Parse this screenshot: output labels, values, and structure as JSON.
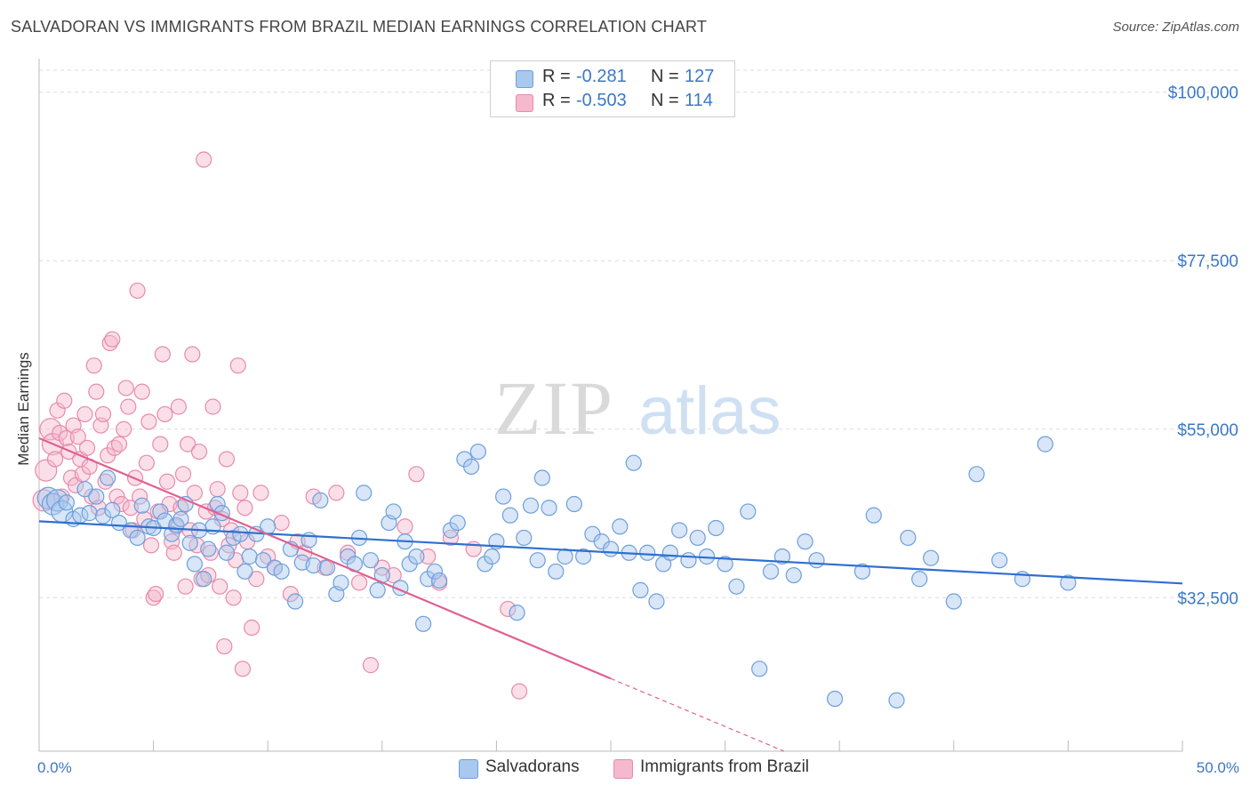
{
  "title": "SALVADORAN VS IMMIGRANTS FROM BRAZIL MEDIAN EARNINGS CORRELATION CHART",
  "source": "Source: ZipAtlas.com",
  "watermark": {
    "zip": "ZIP",
    "atlas": "atlas"
  },
  "legend": {
    "rows": [
      {
        "r_label": "R =",
        "r_value": "-0.281",
        "n_label": "N =",
        "n_value": "127",
        "color": "#a9c8ee"
      },
      {
        "r_label": "R =",
        "r_value": "-0.503",
        "n_label": "N =",
        "n_value": "114",
        "color": "#f5b8cc"
      }
    ]
  },
  "bottom_legend": {
    "salvadorans": "Salvadorans",
    "brazil": "Immigrants from Brazil"
  },
  "colors": {
    "blue_fill": "#a9c8ee",
    "blue_stroke": "#6c9fdc",
    "blue_line": "#2f6fd0",
    "pink_fill": "#f5b8cc",
    "pink_stroke": "#e98aab",
    "pink_line": "#e0608f",
    "tick_text": "#3b78c7",
    "grid": "#dcdcdc"
  },
  "chart_data": {
    "type": "scatter",
    "title": "SALVADORAN VS IMMIGRANTS FROM BRAZIL MEDIAN EARNINGS CORRELATION CHART",
    "xlabel": "",
    "ylabel": "Median Earnings",
    "xlim": [
      0,
      50
    ],
    "ylim": [
      12000,
      104000
    ],
    "x_tick_labels": [
      {
        "value": 0,
        "label": "0.0%"
      },
      {
        "value": 50,
        "label": "50.0%"
      }
    ],
    "y_ticks": [
      {
        "value": 32500,
        "label": "$32,500"
      },
      {
        "value": 55000,
        "label": "$55,000"
      },
      {
        "value": 77500,
        "label": "$77,500"
      },
      {
        "value": 100000,
        "label": "$100,000"
      }
    ],
    "grid": true,
    "legend_position": "top-center",
    "series": [
      {
        "name": "Salvadorans",
        "r": -0.281,
        "n": 127,
        "trend": {
          "x": [
            0,
            50
          ],
          "y": [
            42700,
            34400
          ]
        },
        "points": [
          [
            0.4,
            45800
          ],
          [
            0.6,
            45000
          ],
          [
            0.8,
            45500
          ],
          [
            1.0,
            44000
          ],
          [
            1.2,
            45200
          ],
          [
            1.5,
            43000
          ],
          [
            1.8,
            43500
          ],
          [
            2.0,
            47000
          ],
          [
            2.2,
            43800
          ],
          [
            2.5,
            46000
          ],
          [
            2.8,
            43400
          ],
          [
            3.0,
            48500
          ],
          [
            3.2,
            44200
          ],
          [
            3.5,
            42500
          ],
          [
            4.0,
            41500
          ],
          [
            4.3,
            40500
          ],
          [
            4.5,
            44800
          ],
          [
            4.8,
            42000
          ],
          [
            5.0,
            41800
          ],
          [
            5.3,
            44000
          ],
          [
            5.5,
            42800
          ],
          [
            5.8,
            41000
          ],
          [
            6.0,
            42200
          ],
          [
            6.2,
            43000
          ],
          [
            6.4,
            45000
          ],
          [
            6.6,
            39800
          ],
          [
            6.8,
            37000
          ],
          [
            7.0,
            41500
          ],
          [
            7.2,
            35000
          ],
          [
            7.4,
            39000
          ],
          [
            7.6,
            42000
          ],
          [
            7.8,
            45000
          ],
          [
            8.0,
            43800
          ],
          [
            8.2,
            38500
          ],
          [
            8.5,
            40500
          ],
          [
            8.8,
            41000
          ],
          [
            9.0,
            36000
          ],
          [
            9.2,
            38000
          ],
          [
            9.5,
            41000
          ],
          [
            9.8,
            37500
          ],
          [
            10.0,
            42000
          ],
          [
            10.3,
            36500
          ],
          [
            10.6,
            36000
          ],
          [
            11.0,
            39000
          ],
          [
            11.2,
            32000
          ],
          [
            11.5,
            37200
          ],
          [
            11.8,
            40200
          ],
          [
            12.0,
            36800
          ],
          [
            12.3,
            45500
          ],
          [
            12.6,
            36500
          ],
          [
            13.0,
            33000
          ],
          [
            13.2,
            34500
          ],
          [
            13.5,
            38000
          ],
          [
            13.8,
            37000
          ],
          [
            14.0,
            40500
          ],
          [
            14.2,
            46500
          ],
          [
            14.5,
            37500
          ],
          [
            14.8,
            33500
          ],
          [
            15.0,
            35500
          ],
          [
            15.3,
            42500
          ],
          [
            15.5,
            44000
          ],
          [
            15.8,
            33800
          ],
          [
            16.0,
            40000
          ],
          [
            16.2,
            37000
          ],
          [
            16.5,
            38000
          ],
          [
            16.8,
            29000
          ],
          [
            17.0,
            35000
          ],
          [
            17.3,
            36000
          ],
          [
            17.5,
            34800
          ],
          [
            18.0,
            41500
          ],
          [
            18.3,
            42500
          ],
          [
            18.6,
            51000
          ],
          [
            18.9,
            50000
          ],
          [
            19.2,
            52000
          ],
          [
            19.5,
            37000
          ],
          [
            19.8,
            38000
          ],
          [
            20.0,
            40000
          ],
          [
            20.3,
            46000
          ],
          [
            20.6,
            43500
          ],
          [
            20.9,
            30500
          ],
          [
            21.2,
            40500
          ],
          [
            21.5,
            44800
          ],
          [
            21.8,
            37500
          ],
          [
            22.0,
            48500
          ],
          [
            22.3,
            44500
          ],
          [
            22.6,
            36000
          ],
          [
            23.0,
            38000
          ],
          [
            23.4,
            45000
          ],
          [
            23.8,
            38000
          ],
          [
            24.2,
            41000
          ],
          [
            24.6,
            40000
          ],
          [
            25.0,
            39000
          ],
          [
            25.4,
            42000
          ],
          [
            25.8,
            38500
          ],
          [
            26.0,
            50500
          ],
          [
            26.3,
            33500
          ],
          [
            26.6,
            38500
          ],
          [
            27.0,
            32000
          ],
          [
            27.3,
            37000
          ],
          [
            27.6,
            38500
          ],
          [
            28.0,
            41500
          ],
          [
            28.4,
            37500
          ],
          [
            28.8,
            40500
          ],
          [
            29.2,
            38000
          ],
          [
            29.6,
            41800
          ],
          [
            30.0,
            37000
          ],
          [
            30.5,
            34000
          ],
          [
            31.0,
            44000
          ],
          [
            31.5,
            23000
          ],
          [
            32.0,
            36000
          ],
          [
            32.5,
            38000
          ],
          [
            33.0,
            35500
          ],
          [
            33.5,
            40000
          ],
          [
            34.0,
            37500
          ],
          [
            34.8,
            19000
          ],
          [
            36.0,
            36000
          ],
          [
            36.5,
            43500
          ],
          [
            37.5,
            18800
          ],
          [
            38.0,
            40500
          ],
          [
            38.5,
            35000
          ],
          [
            39.0,
            37800
          ],
          [
            40.0,
            32000
          ],
          [
            41.0,
            49000
          ],
          [
            42.0,
            37500
          ],
          [
            43.0,
            35000
          ],
          [
            44.0,
            53000
          ],
          [
            45.0,
            34500
          ]
        ]
      },
      {
        "name": "Immigrants from Brazil",
        "r": -0.503,
        "n": 114,
        "trend": {
          "x": [
            0,
            25
          ],
          "y": [
            53800,
            21700
          ]
        },
        "trend_dashed": {
          "x": [
            25,
            35
          ],
          "y": [
            21700,
            8900
          ]
        },
        "points": [
          [
            0.2,
            45500
          ],
          [
            0.3,
            49500
          ],
          [
            0.5,
            55000
          ],
          [
            0.6,
            53000
          ],
          [
            0.7,
            51000
          ],
          [
            0.8,
            57500
          ],
          [
            0.9,
            54500
          ],
          [
            1.0,
            46000
          ],
          [
            1.1,
            58800
          ],
          [
            1.2,
            53800
          ],
          [
            1.3,
            52000
          ],
          [
            1.4,
            48500
          ],
          [
            1.5,
            55500
          ],
          [
            1.6,
            47500
          ],
          [
            1.7,
            54000
          ],
          [
            1.8,
            51000
          ],
          [
            1.9,
            49000
          ],
          [
            2.0,
            57000
          ],
          [
            2.1,
            52500
          ],
          [
            2.2,
            50000
          ],
          [
            2.3,
            46000
          ],
          [
            2.4,
            63500
          ],
          [
            2.5,
            60000
          ],
          [
            2.6,
            44500
          ],
          [
            2.7,
            55500
          ],
          [
            2.8,
            57000
          ],
          [
            2.9,
            48000
          ],
          [
            3.0,
            51500
          ],
          [
            3.1,
            66500
          ],
          [
            3.2,
            67000
          ],
          [
            3.3,
            52500
          ],
          [
            3.4,
            46000
          ],
          [
            3.5,
            53000
          ],
          [
            3.6,
            45000
          ],
          [
            3.7,
            55000
          ],
          [
            3.8,
            60500
          ],
          [
            3.9,
            58000
          ],
          [
            4.0,
            44500
          ],
          [
            4.1,
            41500
          ],
          [
            4.2,
            48500
          ],
          [
            4.3,
            73500
          ],
          [
            4.4,
            46000
          ],
          [
            4.5,
            60000
          ],
          [
            4.6,
            43000
          ],
          [
            4.7,
            50500
          ],
          [
            4.8,
            56000
          ],
          [
            4.9,
            39500
          ],
          [
            5.0,
            32500
          ],
          [
            5.1,
            33000
          ],
          [
            5.2,
            44000
          ],
          [
            5.3,
            53000
          ],
          [
            5.4,
            65000
          ],
          [
            5.5,
            57000
          ],
          [
            5.6,
            48000
          ],
          [
            5.7,
            45000
          ],
          [
            5.8,
            40000
          ],
          [
            5.9,
            38500
          ],
          [
            6.0,
            42000
          ],
          [
            6.1,
            58000
          ],
          [
            6.2,
            44500
          ],
          [
            6.3,
            49000
          ],
          [
            6.4,
            34000
          ],
          [
            6.5,
            53000
          ],
          [
            6.6,
            41500
          ],
          [
            6.7,
            65000
          ],
          [
            6.8,
            46500
          ],
          [
            6.9,
            39500
          ],
          [
            7.0,
            52000
          ],
          [
            7.1,
            35000
          ],
          [
            7.2,
            91000
          ],
          [
            7.3,
            44000
          ],
          [
            7.4,
            35500
          ],
          [
            7.5,
            38500
          ],
          [
            7.6,
            58000
          ],
          [
            7.7,
            44500
          ],
          [
            7.8,
            47000
          ],
          [
            7.9,
            34000
          ],
          [
            8.0,
            43000
          ],
          [
            8.1,
            26000
          ],
          [
            8.2,
            51000
          ],
          [
            8.3,
            39500
          ],
          [
            8.4,
            41500
          ],
          [
            8.5,
            32500
          ],
          [
            8.6,
            37500
          ],
          [
            8.7,
            63500
          ],
          [
            8.8,
            46500
          ],
          [
            8.9,
            23000
          ],
          [
            9.0,
            44500
          ],
          [
            9.1,
            40000
          ],
          [
            9.3,
            28500
          ],
          [
            9.5,
            35000
          ],
          [
            9.7,
            46500
          ],
          [
            10.0,
            38000
          ],
          [
            10.3,
            36500
          ],
          [
            10.6,
            42500
          ],
          [
            11.0,
            33000
          ],
          [
            11.3,
            40000
          ],
          [
            11.6,
            38500
          ],
          [
            12.0,
            46000
          ],
          [
            12.5,
            36500
          ],
          [
            13.0,
            46500
          ],
          [
            13.5,
            38500
          ],
          [
            14.0,
            34500
          ],
          [
            14.5,
            23500
          ],
          [
            15.0,
            36500
          ],
          [
            15.5,
            35500
          ],
          [
            16.0,
            42000
          ],
          [
            16.5,
            49000
          ],
          [
            17.0,
            38000
          ],
          [
            17.5,
            34500
          ],
          [
            18.0,
            40500
          ],
          [
            19.0,
            39000
          ],
          [
            20.5,
            31000
          ],
          [
            21.0,
            20000
          ]
        ]
      }
    ]
  }
}
